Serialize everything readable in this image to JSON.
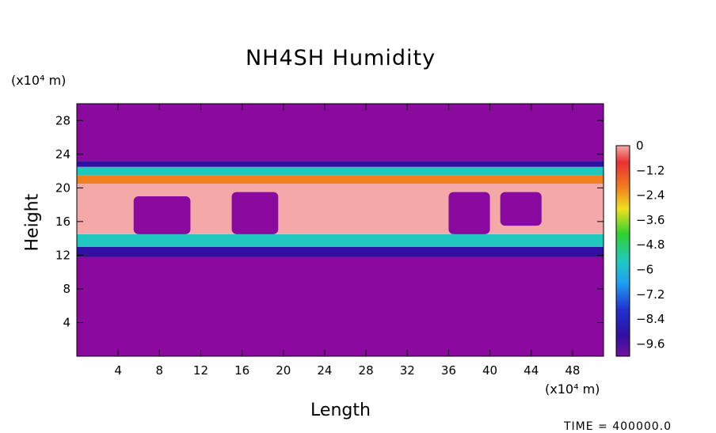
{
  "chart_data": {
    "type": "heatmap",
    "title": "NH4SH Humidity",
    "xlabel": "Length",
    "ylabel": "Height",
    "x_unit": "(x10⁴ m)",
    "y_unit": "(x10⁴ m)",
    "x_ticks": [
      4,
      8,
      12,
      16,
      20,
      24,
      28,
      32,
      36,
      40,
      44,
      48
    ],
    "y_ticks": [
      4,
      8,
      12,
      16,
      20,
      24,
      28
    ],
    "xlim": [
      0,
      51
    ],
    "ylim": [
      0,
      30
    ],
    "colorbar": {
      "labels": [
        "0",
        "−1.2",
        "−2.4",
        "−3.6",
        "−4.8",
        "−6",
        "−7.2",
        "−8.4",
        "−9.6"
      ],
      "range": [
        -10,
        0
      ]
    },
    "bands": [
      {
        "y_range": [
          0,
          11.8
        ],
        "value": -10
      },
      {
        "y_range": [
          11.8,
          13
        ],
        "value": -8.5
      },
      {
        "y_range": [
          13,
          14.5
        ],
        "value": -5
      },
      {
        "y_range": [
          14.5,
          20.5
        ],
        "value": 0
      },
      {
        "y_range": [
          20.5,
          21.5
        ],
        "value": -1.5
      },
      {
        "y_range": [
          21.5,
          22.5
        ],
        "value": -5
      },
      {
        "y_range": [
          22.5,
          23.2
        ],
        "value": -8.5
      },
      {
        "y_range": [
          23.2,
          30
        ],
        "value": -10
      }
    ],
    "dry_pockets": [
      {
        "x": [
          5.5,
          11
        ],
        "y": [
          14.5,
          19
        ]
      },
      {
        "x": [
          15,
          19.5
        ],
        "y": [
          14.5,
          19.5
        ]
      },
      {
        "x": [
          36,
          40
        ],
        "y": [
          14.5,
          19.5
        ]
      },
      {
        "x": [
          41,
          45
        ],
        "y": [
          15.5,
          19.5
        ]
      }
    ],
    "time_text": "TIME = 400000.0"
  }
}
